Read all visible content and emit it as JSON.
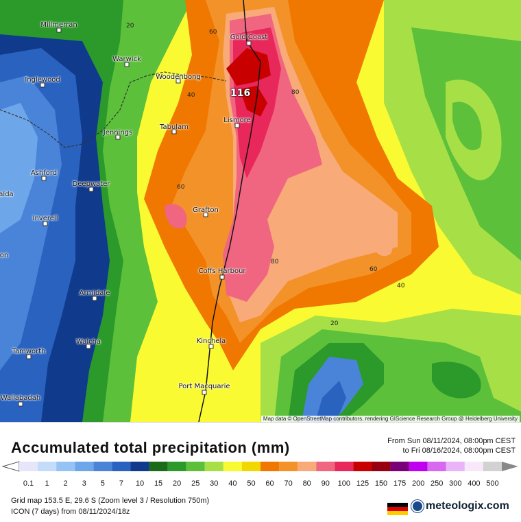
{
  "map": {
    "credit": "Map data © OpenStreetMap contributors, rendering GIScience Research Group @ Heidelberg University",
    "max_value_label": "116",
    "cities": [
      {
        "name": "Millmerran"
      },
      {
        "name": "Warwick"
      },
      {
        "name": "Inglewood"
      },
      {
        "name": "Woodenbong"
      },
      {
        "name": "Gold Coast"
      },
      {
        "name": "Tabulam"
      },
      {
        "name": "Lismore"
      },
      {
        "name": "Jennings"
      },
      {
        "name": "Ashford"
      },
      {
        "name": "Deepwater"
      },
      {
        "name": "Grafton"
      },
      {
        "name": "Inverell"
      },
      {
        "name": "Coffs Harbour"
      },
      {
        "name": "Armidale"
      },
      {
        "name": "Walcha"
      },
      {
        "name": "Kinchela"
      },
      {
        "name": "Tamworth"
      },
      {
        "name": "Port Macquarie"
      },
      {
        "name": "Wallabadah"
      },
      {
        "name": "alda"
      },
      {
        "name": "on"
      }
    ],
    "contour_labels": [
      "20",
      "60",
      "40",
      "80",
      "60",
      "80",
      "60",
      "40",
      "20"
    ]
  },
  "legend": {
    "title": "Accumulated total precipitation (mm)",
    "period_from": "From Sun 08/11/2024, 08:00pm CEST",
    "period_to": "to Fri 08/16/2024, 08:00pm CEST",
    "ticks": [
      "0.1",
      "1",
      "2",
      "3",
      "5",
      "7",
      "10",
      "15",
      "20",
      "25",
      "30",
      "40",
      "50",
      "60",
      "70",
      "80",
      "90",
      "100",
      "125",
      "150",
      "175",
      "200",
      "250",
      "300",
      "400",
      "500"
    ],
    "colors": [
      "#e6e6fa",
      "#c4dcfa",
      "#96c3f5",
      "#6ea6ea",
      "#4a84d8",
      "#2a62c0",
      "#103a8c",
      "#1b6b1b",
      "#2b9a2b",
      "#5cc03a",
      "#a7e046",
      "#fafa32",
      "#f0d800",
      "#f07800",
      "#f4922a",
      "#f8aa78",
      "#f06680",
      "#e8285a",
      "#c80000",
      "#960010",
      "#7a007a",
      "#c000f0",
      "#d868f0",
      "#eab4f8",
      "#f8e8fa",
      "#d2d2d2"
    ]
  },
  "info": {
    "grid": "Grid map 153.5 E, 29.6 S (Zoom level 3 / Resolution 750m)",
    "model": "ICON (7 days) from 08/11/2024/18z"
  },
  "brand": {
    "name": "meteologix.com"
  }
}
